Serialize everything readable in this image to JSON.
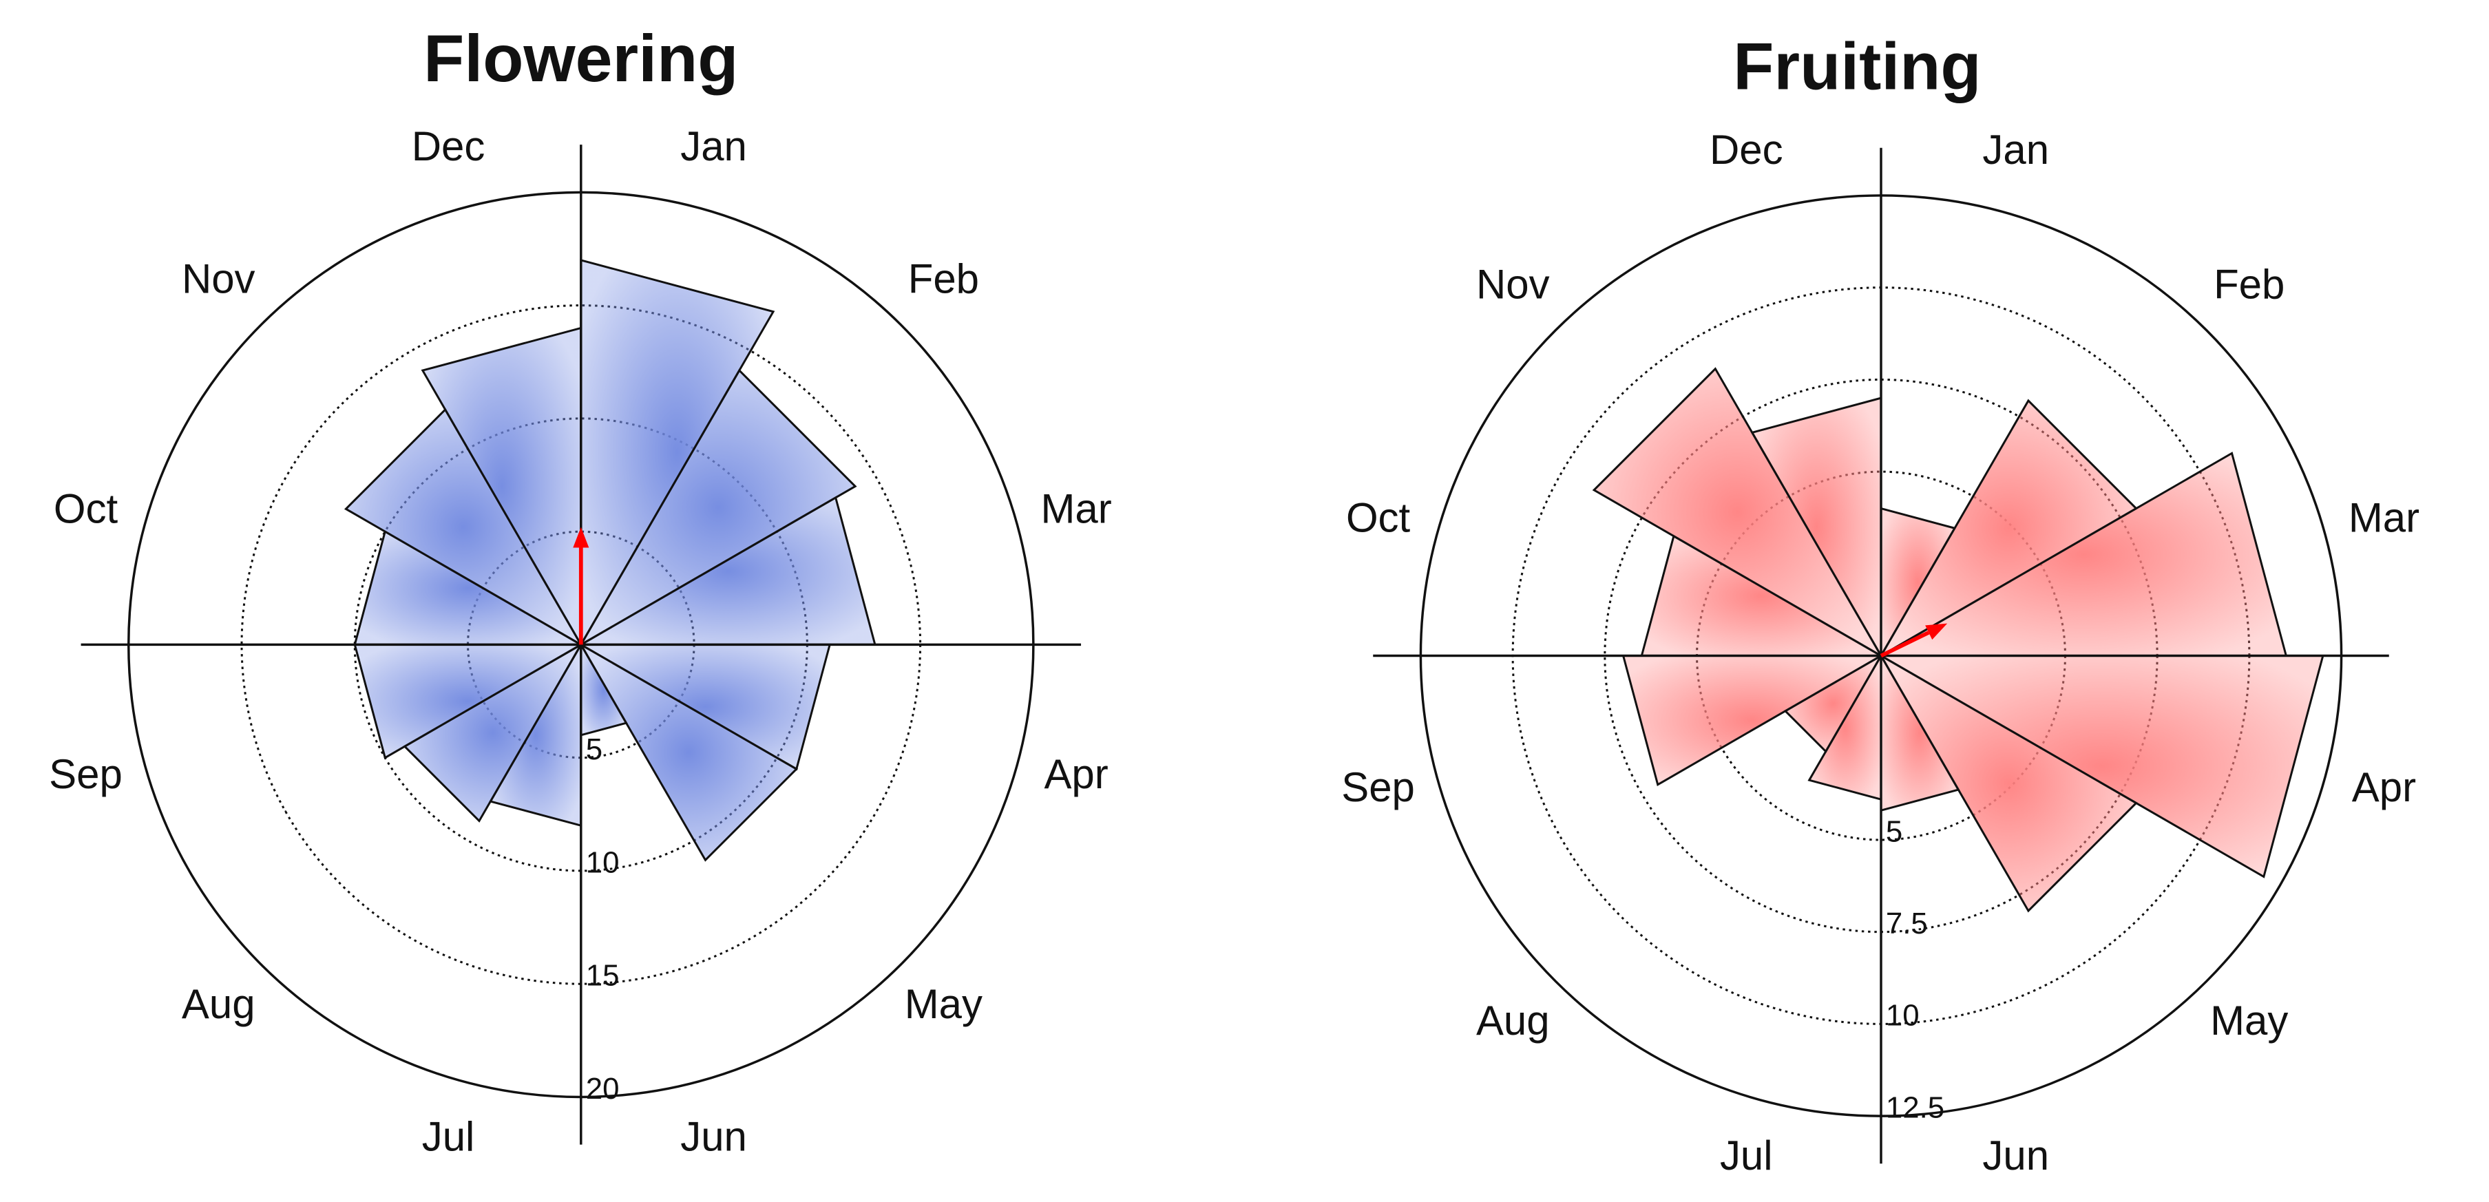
{
  "chart_data": [
    {
      "type": "rose",
      "title": "Flowering",
      "categories": [
        "Jan",
        "Feb",
        "Mar",
        "Apr",
        "May",
        "Jun",
        "Jul",
        "Aug",
        "Sep",
        "Oct",
        "Nov",
        "Dec"
      ],
      "values": [
        17,
        14,
        13,
        11,
        11,
        4,
        8,
        9,
        10,
        10,
        12,
        14
      ],
      "color": "#7088e0",
      "rlim": [
        0,
        20
      ],
      "rticks": [
        5,
        10,
        15,
        20
      ],
      "mean_vector": {
        "angle": 0,
        "length": 5.2,
        "color": "#ff0000"
      }
    },
    {
      "type": "rose",
      "title": "Fruiting",
      "categories": [
        "Jan",
        "Feb",
        "Mar",
        "Apr",
        "May",
        "Jun",
        "Jul",
        "Aug",
        "Sep",
        "Oct",
        "Nov",
        "Dec"
      ],
      "values": [
        4,
        8,
        11,
        12,
        8,
        4.2,
        3.9,
        3,
        7,
        6.5,
        9,
        7
      ],
      "color": "#ff8080",
      "rlim": [
        0,
        12.5
      ],
      "rticks": [
        5,
        7.5,
        10,
        12.5
      ],
      "mean_vector": {
        "angle": 64,
        "length": 2,
        "color": "#ff0000"
      }
    }
  ]
}
